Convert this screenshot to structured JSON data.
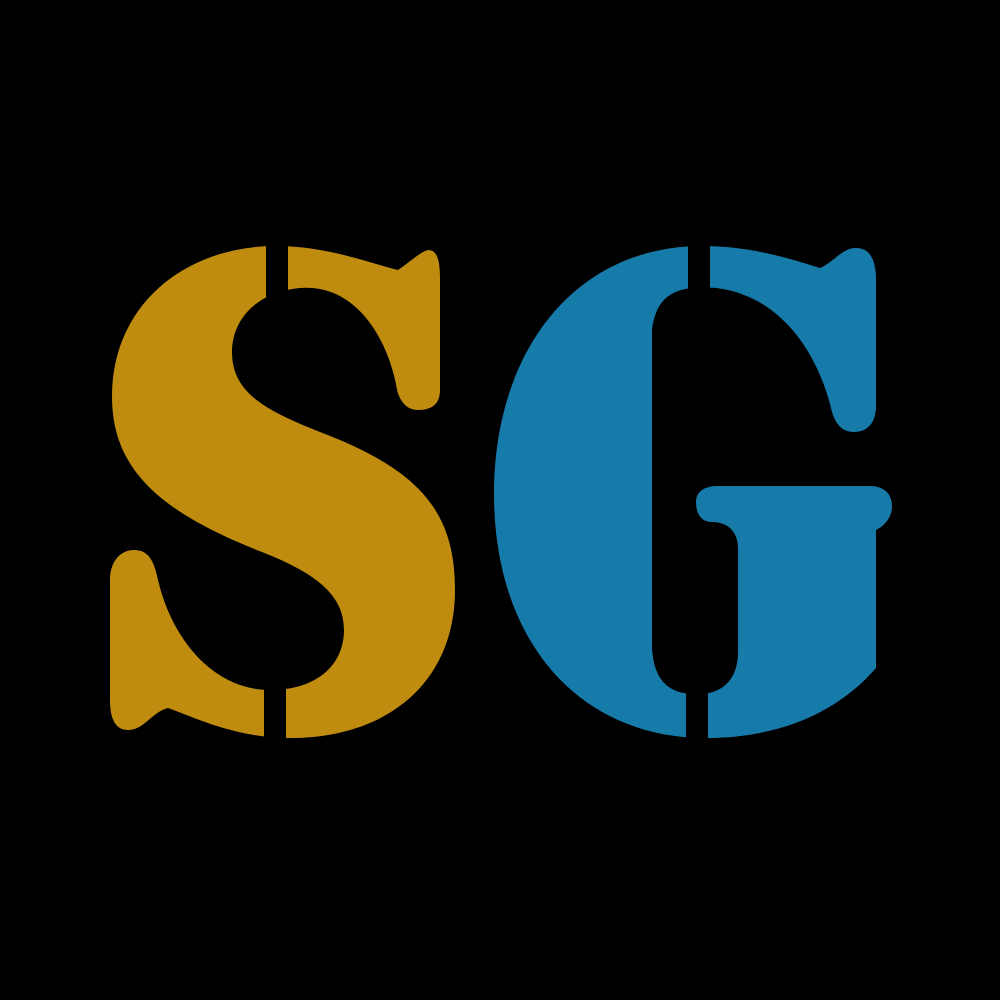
{
  "logo": {
    "letters": [
      {
        "char": "S",
        "color": "#BF8C10"
      },
      {
        "char": "G",
        "color": "#177BAA"
      }
    ],
    "background": "#000000"
  }
}
